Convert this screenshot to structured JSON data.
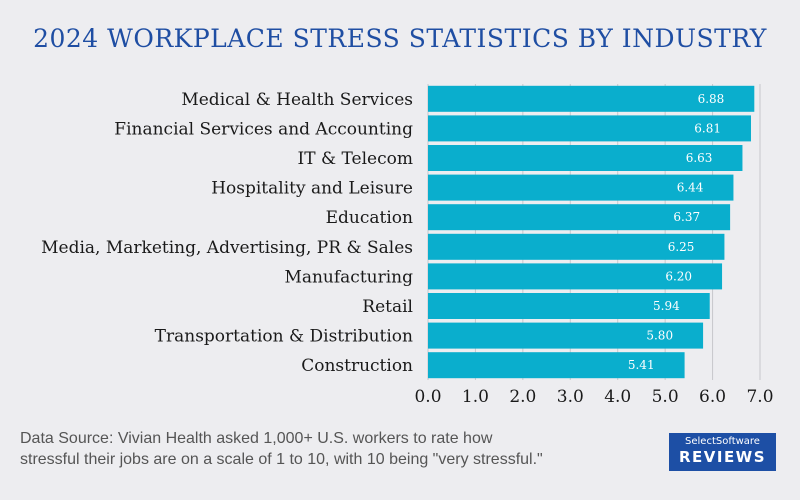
{
  "chart_data": {
    "type": "bar",
    "orientation": "horizontal",
    "title": "2024 WORKPLACE STRESS STATISTICS BY INDUSTRY",
    "categories": [
      "Medical & Health Services",
      "Financial Services and Accounting",
      "IT & Telecom",
      "Hospitality and Leisure",
      "Education",
      "Media, Marketing, Advertising, PR & Sales",
      "Manufacturing",
      "Retail",
      "Transportation & Distribution",
      "Construction"
    ],
    "values": [
      6.88,
      6.81,
      6.63,
      6.44,
      6.37,
      6.25,
      6.2,
      5.94,
      5.8,
      5.41
    ],
    "value_labels": [
      "6.88",
      "6.81",
      "6.63",
      "6.44",
      "6.37",
      "6.25",
      "6.20",
      "5.94",
      "5.80",
      "5.41"
    ],
    "xticks": [
      "0.0",
      "1.0",
      "2.0",
      "3.0",
      "4.0",
      "5.0",
      "6.0",
      "7.0"
    ],
    "xlim": [
      0,
      7
    ],
    "xlabel": "",
    "ylabel": "",
    "grid": true,
    "bar_color": "#0aaecd",
    "grid_color": "#c8c8cc"
  },
  "source_line1": "Data Source: Vivian Health asked 1,000+ U.S. workers to rate how",
  "source_line2": "stressful their jobs are on a scale of 1 to 10, with 10 being \"very stressful.\"",
  "logo": {
    "top": "SelectSoftware",
    "bottom": "REVIEWS"
  }
}
